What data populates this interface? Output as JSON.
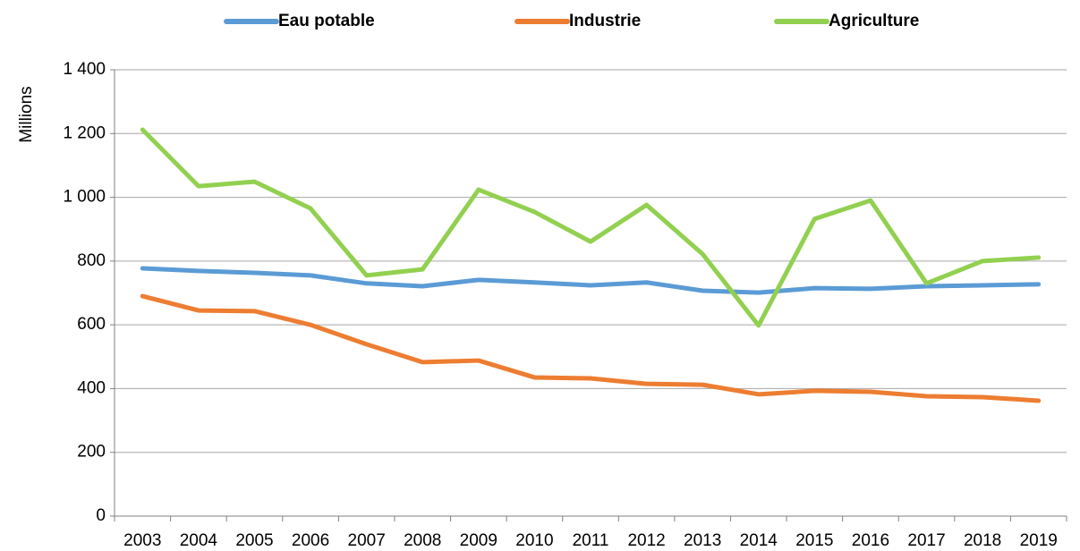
{
  "chart_data": {
    "type": "line",
    "y_label": "Millions",
    "categories": [
      "2003",
      "2004",
      "2005",
      "2006",
      "2007",
      "2008",
      "2009",
      "2010",
      "2011",
      "2012",
      "2013",
      "2014",
      "2015",
      "2016",
      "2017",
      "2018",
      "2019"
    ],
    "series": [
      {
        "name": "Eau potable",
        "color": "#5b9bd5",
        "values": [
          777,
          769,
          763,
          755,
          730,
          721,
          741,
          733,
          724,
          733,
          707,
          701,
          715,
          713,
          721,
          724,
          727
        ]
      },
      {
        "name": "Industrie",
        "color": "#ed7d31",
        "values": [
          690,
          645,
          643,
          600,
          539,
          483,
          488,
          435,
          432,
          415,
          412,
          382,
          393,
          390,
          376,
          373,
          362
        ]
      },
      {
        "name": "Agriculture",
        "color": "#92d050",
        "values": [
          1212,
          1035,
          1049,
          965,
          755,
          774,
          1024,
          954,
          861,
          976,
          822,
          598,
          932,
          990,
          730,
          800,
          811
        ]
      }
    ],
    "ylim": [
      0,
      1400
    ],
    "yticks": [
      0,
      200,
      400,
      600,
      800,
      {
        "value": 1000,
        "label": "1 000"
      },
      {
        "value": 1200,
        "label": "1 200"
      },
      {
        "value": 1400,
        "label": "1 400"
      }
    ],
    "grid": true,
    "legend": "top"
  }
}
